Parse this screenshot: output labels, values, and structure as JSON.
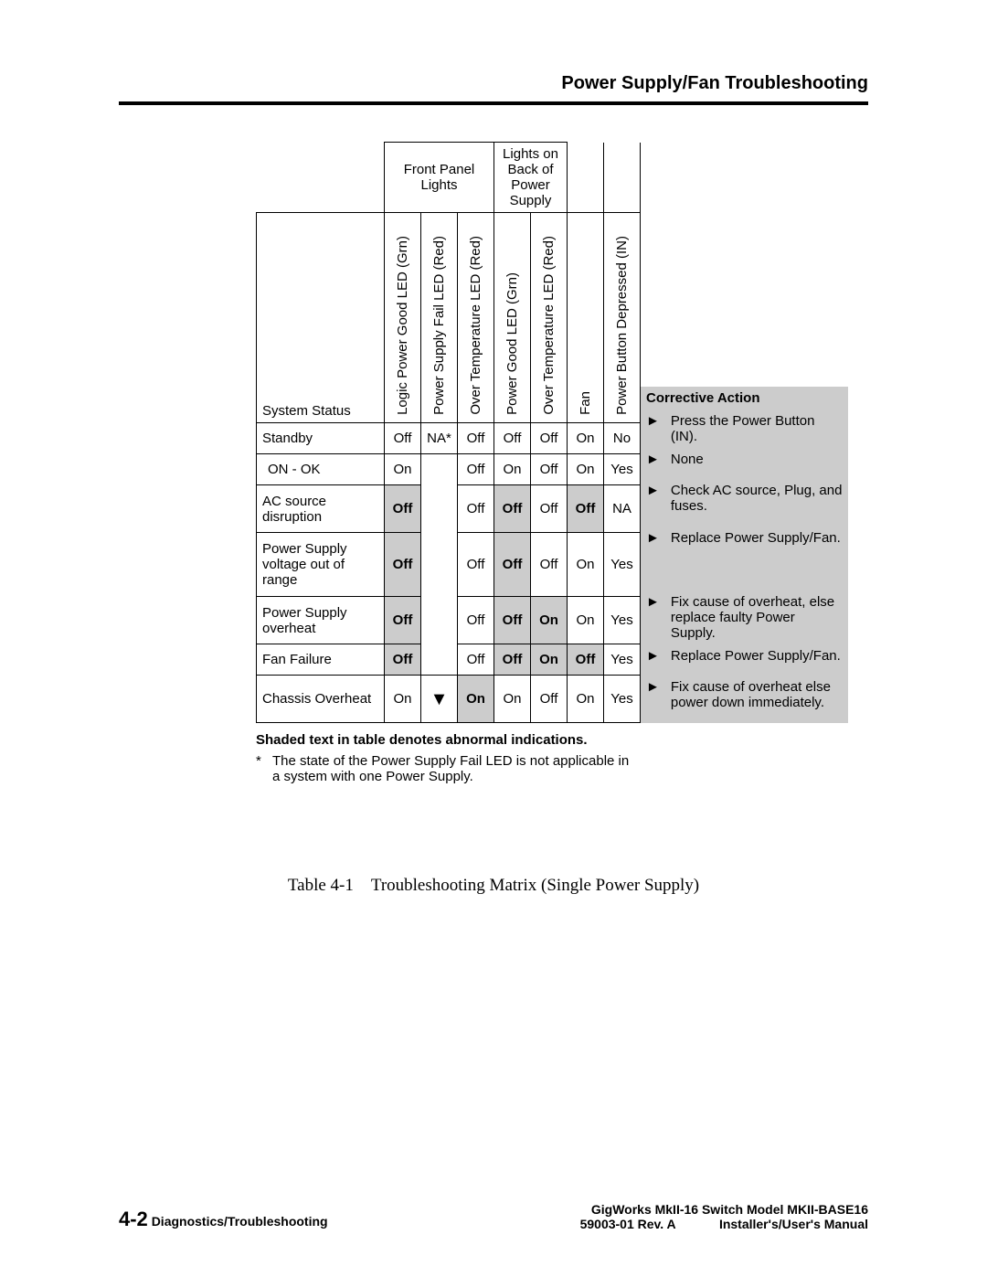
{
  "header_title": "Power Supply/Fan Troubleshooting",
  "table": {
    "group_headers": {
      "front_panel": "Front Panel Lights",
      "back_supply": "Lights on Back of Power Supply"
    },
    "col_headers": {
      "status": "System Status",
      "c1": "Logic Power Good LED (Grn)",
      "c2": "Power Supply Fail LED (Red)",
      "c3": "Over Temperature LED (Red)",
      "c4": "Power Good LED (Grn)",
      "c5": "Over Temperature LED (Red)",
      "c6": "Fan",
      "c7": "Power Button Depressed (IN)",
      "corrective": "Corrective Action"
    },
    "rows": [
      {
        "status": "Standby",
        "c1": "Off",
        "c2": "NA*",
        "c3": "Off",
        "c4": "Off",
        "c5": "Off",
        "c6": "On",
        "c7": "No",
        "shaded": {},
        "action": "Press the Power Button (IN)."
      },
      {
        "status": "ON - OK",
        "c1": "On",
        "c2": "",
        "c3": "Off",
        "c4": "On",
        "c5": "Off",
        "c6": "On",
        "c7": "Yes",
        "shaded": {},
        "action": "None",
        "status_pad": true
      },
      {
        "status": "AC source disruption",
        "c1": "Off",
        "c2": "",
        "c3": "Off",
        "c4": "Off",
        "c5": "Off",
        "c6": "Off",
        "c7": "NA",
        "shaded": {
          "c1": true,
          "c4": true,
          "c6": true
        },
        "action": "Check AC source, Plug, and fuses."
      },
      {
        "status": "Power Supply voltage out of range",
        "c1": "Off",
        "c2": "",
        "c3": "Off",
        "c4": "Off",
        "c5": "Off",
        "c6": "On",
        "c7": "Yes",
        "shaded": {
          "c1": true,
          "c4": true
        },
        "action": "Replace Power Supply/Fan."
      },
      {
        "status": "Power Supply overheat",
        "c1": "Off",
        "c2": "",
        "c3": "Off",
        "c4": "Off",
        "c5": "On",
        "c6": "On",
        "c7": "Yes",
        "shaded": {
          "c1": true,
          "c4": true,
          "c5": true
        },
        "action": "Fix cause of overheat, else replace faulty Power Supply."
      },
      {
        "status": "Fan Failure",
        "c1": "Off",
        "c2": "",
        "c3": "Off",
        "c4": "Off",
        "c5": "On",
        "c6": "Off",
        "c7": "Yes",
        "shaded": {
          "c1": true,
          "c4": true,
          "c5": true,
          "c6": true
        },
        "action": "Replace Power Supply/Fan."
      },
      {
        "status": "Chassis Overheat",
        "c1": "On",
        "c2": "▼",
        "c3": "On",
        "c4": "On",
        "c5": "Off",
        "c6": "On",
        "c7": "Yes",
        "shaded": {
          "c3": true
        },
        "action": "Fix cause of overheat else power down immediately.",
        "arrow": true
      }
    ]
  },
  "footnote_bold": "Shaded text in table denotes abnormal indications.",
  "footnote_star": "*",
  "footnote_star_text": "The state of the Power Supply Fail LED is not applicable in a system with one Power Supply.",
  "caption": "Table 4-1 Troubleshooting Matrix (Single Power Supply)",
  "footer": {
    "page": "4-2",
    "section": "Diagnostics/Troubleshooting",
    "right1": "GigWorks MkII-16 Switch Model MKII-BASE16",
    "right2a": "59003-01 Rev. A",
    "right2b": "Installer's/User's Manual"
  },
  "colors": {
    "shaded": "#cccccc",
    "border": "#000000",
    "bg": "#ffffff"
  }
}
